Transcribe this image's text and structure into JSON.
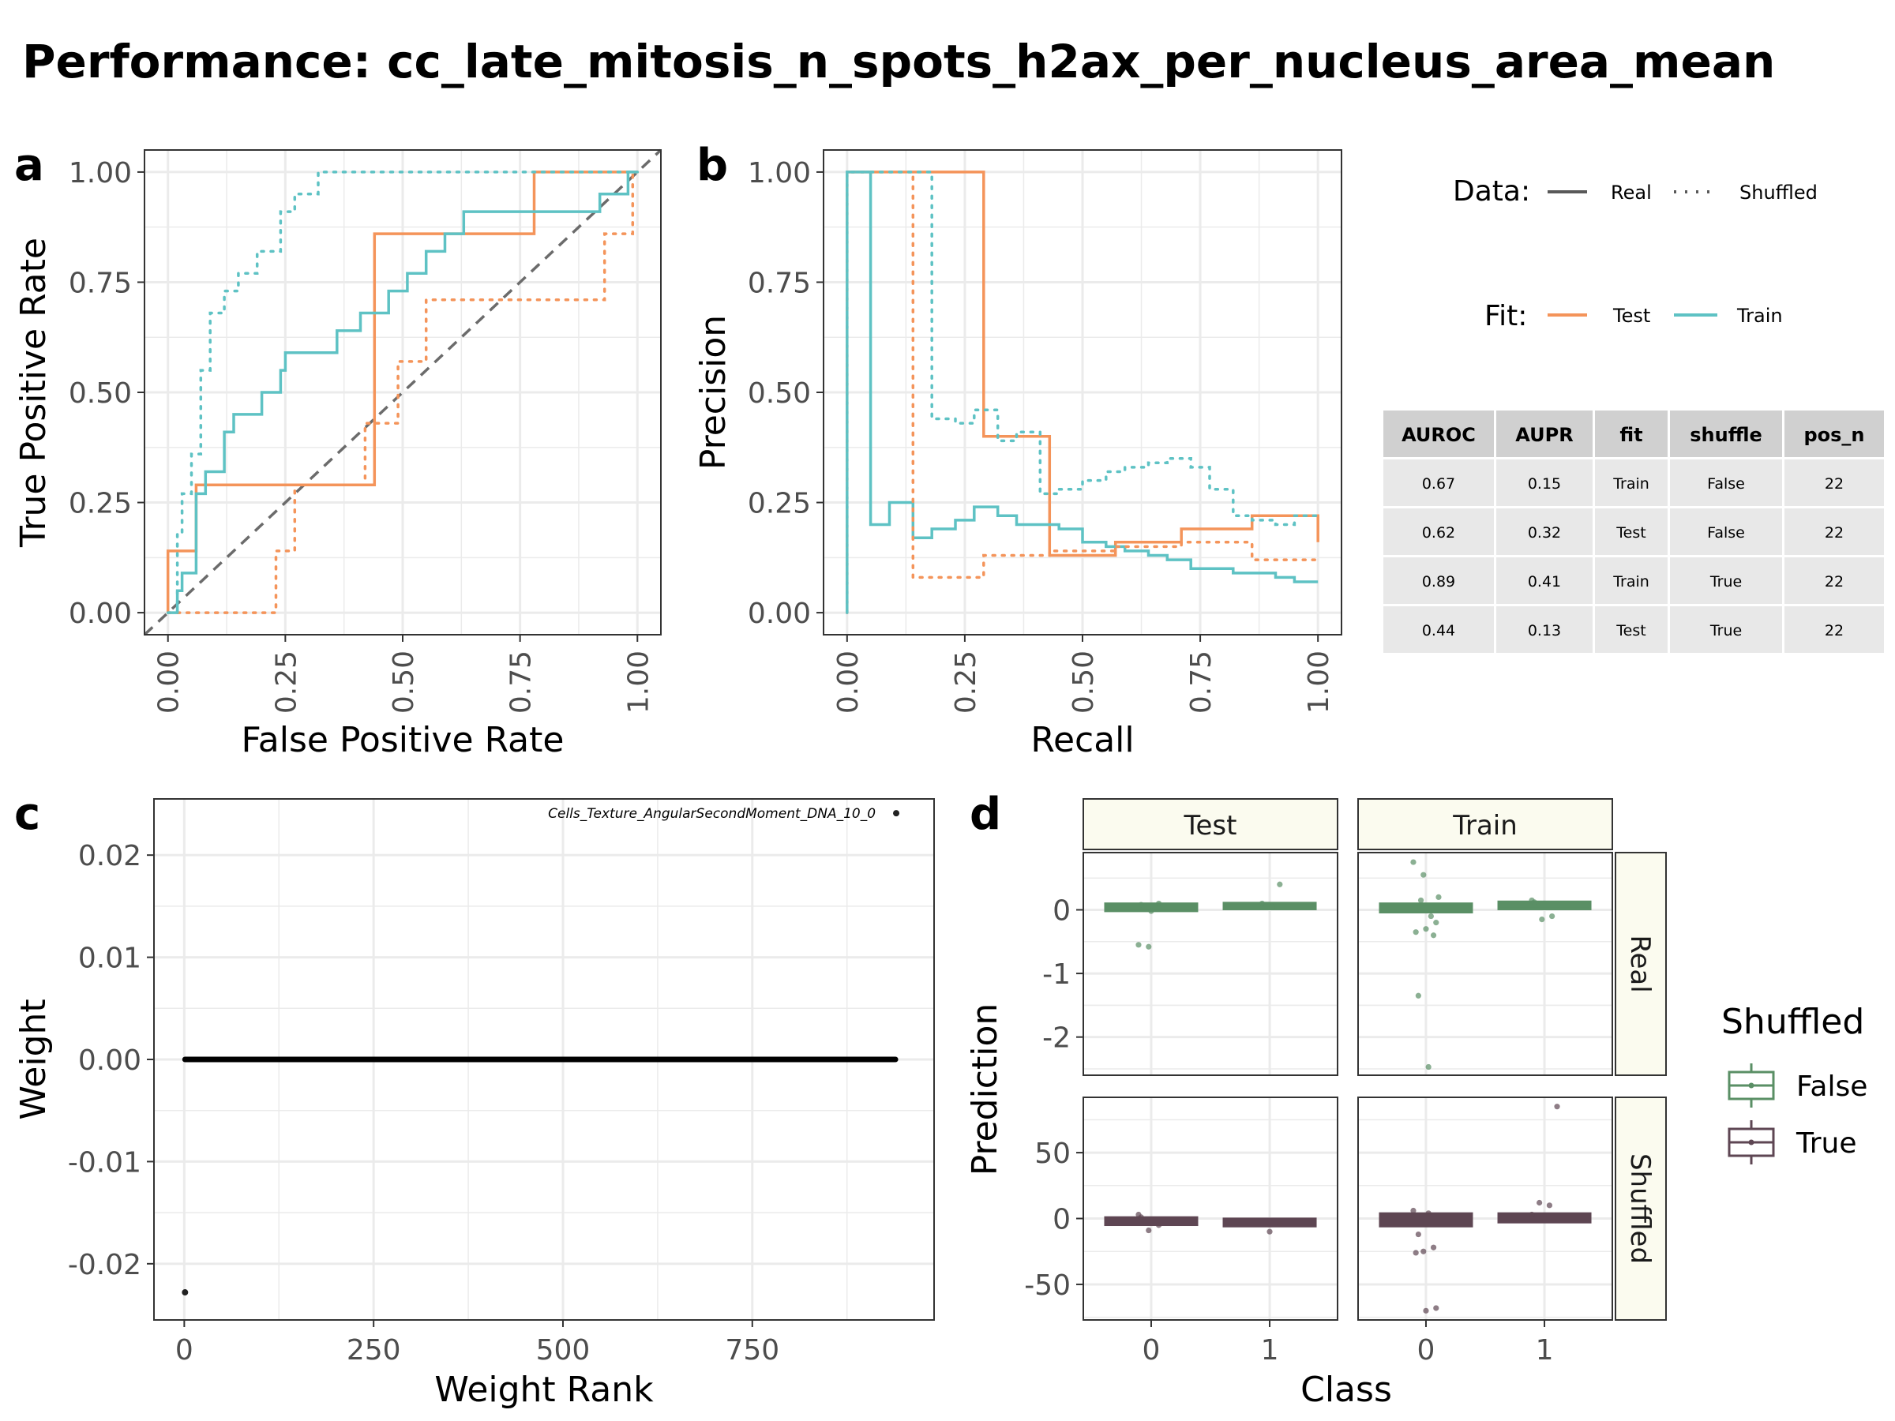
{
  "title": "Performance: cc_late_mitosis_n_spots_h2ax_per_nucleus_area_mean",
  "colors": {
    "test": "#F4945A",
    "train": "#5EC2C4",
    "shuffled_false": "#5A8F65",
    "shuffled_true": "#5E4653",
    "grid": "#EBEBEB",
    "strip_fill": "#FBFBEF",
    "table_header": "#D0D0D0",
    "table_cell": "#E8E8E8"
  },
  "legend": {
    "data_title": "Data:",
    "data_items": [
      "Real",
      "Shuffled"
    ],
    "fit_title": "Fit:",
    "fit_items": [
      "Test",
      "Train"
    ]
  },
  "metrics_table": {
    "columns": [
      "AUROC",
      "AUPR",
      "fit",
      "shuffle",
      "pos_n"
    ],
    "rows": [
      [
        "0.67",
        "0.15",
        "Train",
        "False",
        "22"
      ],
      [
        "0.62",
        "0.32",
        "Test",
        "False",
        "22"
      ],
      [
        "0.89",
        "0.41",
        "Train",
        "True",
        "22"
      ],
      [
        "0.44",
        "0.13",
        "Test",
        "True",
        "22"
      ]
    ]
  },
  "chart_data": [
    {
      "tag": "a",
      "type": "line",
      "xlabel": "False Positive Rate",
      "ylabel": "True Positive Rate",
      "xlim": [
        -0.05,
        1.05
      ],
      "ylim": [
        -0.05,
        1.05
      ],
      "xticks": [
        "0.00",
        "0.25",
        "0.50",
        "0.75",
        "1.00"
      ],
      "yticks": [
        "0.00",
        "0.25",
        "0.50",
        "0.75",
        "1.00"
      ],
      "grid": true,
      "diagonal": true,
      "series": [
        {
          "fit": "Test",
          "data": "Real",
          "x": [
            0,
            0,
            0.06,
            0.06,
            0.44,
            0.44,
            0.78,
            0.78,
            1.0,
            1.0
          ],
          "y": [
            0,
            0.14,
            0.14,
            0.29,
            0.29,
            0.86,
            0.86,
            1.0,
            1.0,
            1.0
          ]
        },
        {
          "fit": "Train",
          "data": "Real",
          "x": [
            0,
            0.02,
            0.02,
            0.03,
            0.03,
            0.06,
            0.06,
            0.08,
            0.08,
            0.12,
            0.12,
            0.14,
            0.14,
            0.2,
            0.2,
            0.24,
            0.24,
            0.25,
            0.25,
            0.36,
            0.36,
            0.41,
            0.41,
            0.47,
            0.47,
            0.51,
            0.51,
            0.55,
            0.55,
            0.59,
            0.59,
            0.63,
            0.63,
            0.71,
            0.71,
            0.92,
            0.92,
            0.98,
            0.98,
            1.0
          ],
          "y": [
            0,
            0,
            0.05,
            0.05,
            0.09,
            0.09,
            0.27,
            0.27,
            0.32,
            0.32,
            0.41,
            0.41,
            0.45,
            0.45,
            0.5,
            0.5,
            0.55,
            0.55,
            0.59,
            0.59,
            0.64,
            0.64,
            0.68,
            0.68,
            0.73,
            0.73,
            0.77,
            0.77,
            0.82,
            0.82,
            0.86,
            0.86,
            0.91,
            0.91,
            0.91,
            0.91,
            0.95,
            0.95,
            1.0,
            1.0
          ]
        },
        {
          "fit": "Test",
          "data": "Shuffled",
          "x": [
            0,
            0.02,
            0.02,
            0.23,
            0.23,
            0.27,
            0.27,
            0.42,
            0.42,
            0.49,
            0.49,
            0.55,
            0.55,
            0.93,
            0.93,
            0.99,
            0.99,
            1.0
          ],
          "y": [
            0,
            0,
            0,
            0,
            0.14,
            0.14,
            0.29,
            0.29,
            0.43,
            0.43,
            0.57,
            0.57,
            0.71,
            0.71,
            0.86,
            0.86,
            1.0,
            1.0
          ]
        },
        {
          "fit": "Train",
          "data": "Shuffled",
          "x": [
            0,
            0.02,
            0.02,
            0.03,
            0.03,
            0.05,
            0.05,
            0.07,
            0.07,
            0.09,
            0.09,
            0.12,
            0.12,
            0.15,
            0.15,
            0.19,
            0.19,
            0.24,
            0.24,
            0.27,
            0.27,
            0.32,
            0.32,
            1.0
          ],
          "y": [
            0,
            0,
            0.18,
            0.18,
            0.27,
            0.27,
            0.36,
            0.36,
            0.55,
            0.55,
            0.68,
            0.68,
            0.73,
            0.73,
            0.77,
            0.77,
            0.82,
            0.82,
            0.91,
            0.91,
            0.95,
            0.95,
            1.0,
            1.0
          ]
        }
      ]
    },
    {
      "tag": "b",
      "type": "line",
      "xlabel": "Recall",
      "ylabel": "Precision",
      "xlim": [
        -0.05,
        1.05
      ],
      "ylim": [
        -0.05,
        1.05
      ],
      "xticks": [
        "0.00",
        "0.25",
        "0.50",
        "0.75",
        "1.00"
      ],
      "yticks": [
        "0.00",
        "0.25",
        "0.50",
        "0.75",
        "1.00"
      ],
      "grid": true,
      "series": [
        {
          "fit": "Test",
          "data": "Real",
          "x": [
            0,
            0,
            0.14,
            0.14,
            0.29,
            0.29,
            0.43,
            0.43,
            0.57,
            0.57,
            0.71,
            0.71,
            0.86,
            0.86,
            1.0,
            1.0
          ],
          "y": [
            1.0,
            1.0,
            1.0,
            1.0,
            1.0,
            0.4,
            0.4,
            0.13,
            0.13,
            0.16,
            0.16,
            0.19,
            0.19,
            0.22,
            0.22,
            0.16
          ]
        },
        {
          "fit": "Train",
          "data": "Real",
          "x": [
            0,
            0,
            0.05,
            0.05,
            0.09,
            0.09,
            0.14,
            0.14,
            0.18,
            0.18,
            0.23,
            0.23,
            0.27,
            0.27,
            0.32,
            0.32,
            0.36,
            0.36,
            0.41,
            0.41,
            0.45,
            0.45,
            0.5,
            0.5,
            0.55,
            0.55,
            0.59,
            0.59,
            0.64,
            0.64,
            0.68,
            0.68,
            0.73,
            0.73,
            0.77,
            0.77,
            0.82,
            0.82,
            0.86,
            0.86,
            0.91,
            0.91,
            0.95,
            0.95,
            1.0
          ],
          "y": [
            0,
            1.0,
            1.0,
            0.2,
            0.2,
            0.25,
            0.25,
            0.17,
            0.17,
            0.19,
            0.19,
            0.21,
            0.21,
            0.24,
            0.24,
            0.22,
            0.22,
            0.2,
            0.2,
            0.2,
            0.2,
            0.19,
            0.19,
            0.16,
            0.16,
            0.15,
            0.15,
            0.14,
            0.14,
            0.13,
            0.13,
            0.12,
            0.12,
            0.1,
            0.1,
            0.1,
            0.1,
            0.09,
            0.09,
            0.09,
            0.09,
            0.08,
            0.08,
            0.07,
            0.07
          ]
        },
        {
          "fit": "Test",
          "data": "Shuffled",
          "x": [
            0,
            0,
            0.14,
            0.14,
            0.29,
            0.29,
            0.43,
            0.43,
            0.57,
            0.57,
            0.71,
            0.71,
            0.86,
            0.86,
            1.0
          ],
          "y": [
            0,
            1.0,
            1.0,
            0.08,
            0.08,
            0.13,
            0.13,
            0.14,
            0.14,
            0.15,
            0.15,
            0.16,
            0.16,
            0.12,
            0.12
          ]
        },
        {
          "fit": "Train",
          "data": "Shuffled",
          "x": [
            0,
            0,
            0.18,
            0.18,
            0.23,
            0.23,
            0.27,
            0.27,
            0.32,
            0.32,
            0.36,
            0.36,
            0.41,
            0.41,
            0.45,
            0.45,
            0.5,
            0.5,
            0.55,
            0.55,
            0.59,
            0.59,
            0.64,
            0.64,
            0.68,
            0.68,
            0.73,
            0.73,
            0.77,
            0.77,
            0.82,
            0.82,
            0.86,
            0.86,
            0.91,
            0.91,
            0.95,
            0.95,
            1.0
          ],
          "y": [
            0,
            1.0,
            1.0,
            0.44,
            0.44,
            0.43,
            0.43,
            0.46,
            0.46,
            0.39,
            0.39,
            0.41,
            0.41,
            0.27,
            0.27,
            0.28,
            0.28,
            0.3,
            0.3,
            0.32,
            0.32,
            0.33,
            0.33,
            0.34,
            0.34,
            0.35,
            0.35,
            0.33,
            0.33,
            0.28,
            0.28,
            0.22,
            0.22,
            0.21,
            0.21,
            0.2,
            0.2,
            0.22,
            0.22
          ]
        }
      ]
    },
    {
      "tag": "c",
      "type": "scatter",
      "xlabel": "Weight Rank",
      "ylabel": "Weight",
      "xlim": [
        -40,
        990
      ],
      "ylim": [
        -0.0255,
        0.0255
      ],
      "xticks": [
        0,
        250,
        500,
        750
      ],
      "yticks": [
        0.02,
        0.01,
        0.0,
        -0.01,
        -0.02
      ],
      "ytick_labels": [
        "0.02",
        "0.01",
        "0.00",
        "-0.01",
        "-0.02"
      ],
      "grid": true,
      "n_points": 941,
      "zero_weight_range": [
        1,
        939
      ],
      "special_points": [
        {
          "rank": 1,
          "weight": -0.0228,
          "label": ""
        },
        {
          "rank": 940,
          "weight": 0.0241,
          "label": "Cells_Texture_AngularSecondMoment_DNA_10_0"
        }
      ]
    },
    {
      "tag": "d",
      "type": "box",
      "xlabel": "Class",
      "ylabel": "Prediction",
      "categories": [
        "0",
        "1"
      ],
      "facet_cols": [
        "Test",
        "Train"
      ],
      "facet_rows": [
        "Real",
        "Shuffled"
      ],
      "legend_title": "Shuffled",
      "legend_items": [
        "False",
        "True"
      ],
      "row_scales": {
        "Real": {
          "ylim": [
            -2.6,
            0.9
          ],
          "yticks": [
            0,
            -1,
            -2
          ],
          "ytick_labels": [
            "0",
            "-1",
            "-2"
          ]
        },
        "Shuffled": {
          "ylim": [
            -77,
            92
          ],
          "yticks": [
            50,
            0,
            -50
          ],
          "ytick_labels": [
            "50",
            "0",
            "-50"
          ]
        }
      },
      "panels": [
        {
          "col": "Test",
          "row": "Real",
          "boxes": [
            {
              "x": 0,
              "median": 0.04,
              "q1": 0.02,
              "q3": 0.06
            },
            {
              "x": 1,
              "median": 0.06,
              "q1": 0.05,
              "q3": 0.07
            }
          ],
          "points": [
            [
              0,
              -0.55
            ],
            [
              0,
              -0.58
            ],
            [
              0,
              0.1
            ],
            [
              0,
              0.08
            ],
            [
              0,
              -0.02
            ],
            [
              1,
              0.4
            ],
            [
              1,
              0.1
            ],
            [
              1,
              0.05
            ]
          ]
        },
        {
          "col": "Train",
          "row": "Real",
          "boxes": [
            {
              "x": 0,
              "median": 0.03,
              "q1 ": 0.0,
              "q1": 0.0,
              "q3": 0.06
            },
            {
              "x": 1,
              "median": 0.07,
              "q1": 0.05,
              "q3": 0.09
            }
          ],
          "points": [
            [
              0,
              0.75
            ],
            [
              0,
              0.55
            ],
            [
              0,
              -0.4
            ],
            [
              0,
              -0.35
            ],
            [
              0,
              -0.3
            ],
            [
              0,
              -0.2
            ],
            [
              0,
              -1.35
            ],
            [
              0,
              -2.47
            ],
            [
              0,
              0.2
            ],
            [
              0,
              0.15
            ],
            [
              0,
              -0.1
            ],
            [
              1,
              0.15
            ],
            [
              1,
              -0.15
            ],
            [
              1,
              -0.1
            ],
            [
              1,
              0.12
            ]
          ]
        },
        {
          "col": "Test",
          "row": "Shuffled",
          "boxes": [
            {
              "x": 0,
              "median": -2,
              "q1": -3,
              "q3": -1
            },
            {
              "x": 1,
              "median": -3,
              "q1": -4,
              "q3": -2
            }
          ],
          "points": [
            [
              0,
              3
            ],
            [
              0,
              -9
            ],
            [
              0,
              -5
            ],
            [
              0,
              1
            ],
            [
              1,
              -10
            ],
            [
              1,
              -4
            ]
          ]
        },
        {
          "col": "Train",
          "row": "Shuffled",
          "boxes": [
            {
              "x": 0,
              "median": -1,
              "q1": -4,
              "q3": 2
            },
            {
              "x": 1,
              "median": 0.5,
              "q1": -1,
              "q3": 2
            }
          ],
          "points": [
            [
              0,
              6
            ],
            [
              0,
              -25
            ],
            [
              0,
              -22
            ],
            [
              0,
              -26
            ],
            [
              0,
              -70
            ],
            [
              0,
              -68
            ],
            [
              0,
              -12
            ],
            [
              0,
              4
            ],
            [
              1,
              85
            ],
            [
              1,
              12
            ],
            [
              1,
              10
            ],
            [
              1,
              3
            ]
          ]
        }
      ]
    }
  ]
}
